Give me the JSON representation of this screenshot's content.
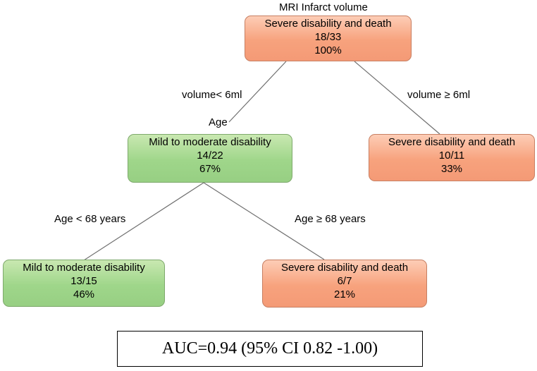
{
  "root_title": "MRI Infarct volume",
  "root": {
    "label": "Severe disability and death",
    "count": "18/33",
    "pct": "100%"
  },
  "edge_left_1": "volume< 6ml",
  "edge_right_1": "volume ≥ 6ml",
  "split_label": "Age",
  "node_age": {
    "label": "Mild to moderate disability",
    "count": "14/22",
    "pct": "67%"
  },
  "node_large": {
    "label": "Severe disability and death",
    "count": "10/11",
    "pct": "33%"
  },
  "edge_left_2": "Age < 68 years",
  "edge_right_2": "Age ≥ 68 years",
  "node_young": {
    "label": "Mild to moderate disability",
    "count": "13/15",
    "pct": "46%"
  },
  "node_old": {
    "label": "Severe disability and death",
    "count": "6/7",
    "pct": "21%"
  },
  "auc_text": "AUC=0.94 (95% CI 0.82 -1.00)",
  "colors": {
    "severe_fill": "#f7a27d",
    "mild_fill": "#9fd68a",
    "edge": "#6f6f6f"
  }
}
